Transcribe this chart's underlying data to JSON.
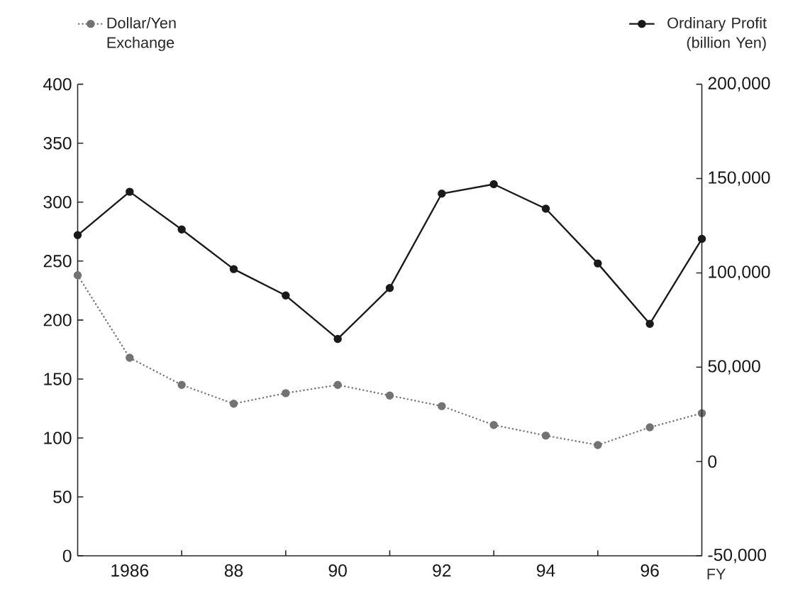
{
  "chart_data": {
    "type": "line",
    "xlabel": "FY",
    "legend": "top",
    "grid": false,
    "marker": "circle",
    "x": [
      1985,
      1986,
      1987,
      1988,
      1989,
      1990,
      1991,
      1992,
      1993,
      1994,
      1995,
      1996,
      1997
    ],
    "xlim": [
      1985,
      1997
    ],
    "xticks": [
      {
        "value": 1986,
        "label": "1986"
      },
      {
        "value": 1987,
        "label": null
      },
      {
        "value": 1988,
        "label": "88"
      },
      {
        "value": 1989,
        "label": null
      },
      {
        "value": 1990,
        "label": "90"
      },
      {
        "value": 1991,
        "label": null
      },
      {
        "value": 1992,
        "label": "92"
      },
      {
        "value": 1993,
        "label": null
      },
      {
        "value": 1994,
        "label": "94"
      },
      {
        "value": 1995,
        "label": null
      },
      {
        "value": 1996,
        "label": "96"
      }
    ],
    "ylim": [
      0,
      400
    ],
    "yticks": [
      0,
      50,
      100,
      150,
      200,
      250,
      300,
      350,
      400
    ],
    "y2lim": [
      -50000,
      200000
    ],
    "y2ticks": [
      {
        "value": -50000,
        "label": "-50,000"
      },
      0,
      {
        "value": 50000,
        "label": "50,000"
      },
      {
        "value": 100000,
        "label": "100,000"
      },
      {
        "value": 150000,
        "label": "150,000"
      },
      {
        "value": 200000,
        "label": "200,000"
      }
    ],
    "series": [
      {
        "name": "Dollar/Yen Exchange",
        "color": "#737373",
        "line_style": "dotted",
        "values": [
          238,
          168,
          145,
          129,
          138,
          145,
          136,
          127,
          111,
          102,
          94,
          109,
          121
        ]
      },
      {
        "name": "Ordinary Profit (billion Yen)",
        "color": "#1a1a1a",
        "line_style": "solid",
        "axis": "y2",
        "values": [
          120000,
          143000,
          123000,
          102000,
          88000,
          65000,
          92000,
          142000,
          147000,
          134000,
          105000,
          73000,
          118000
        ]
      }
    ]
  }
}
